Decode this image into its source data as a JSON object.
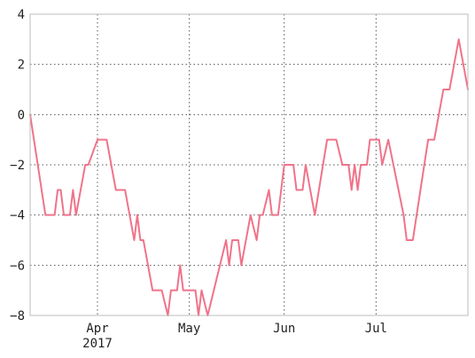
{
  "chart_data": {
    "type": "line",
    "title": "",
    "xlabel": "",
    "ylabel": "",
    "grid": true,
    "line_color": "#f0738a",
    "x_axis": {
      "type": "date",
      "range": [
        "2017-03-10",
        "2017-07-31"
      ],
      "ticks": [
        {
          "date": "2017-04-01",
          "label": "Apr",
          "sublabel": "2017"
        },
        {
          "date": "2017-05-01",
          "label": "May",
          "sublabel": ""
        },
        {
          "date": "2017-06-01",
          "label": "Jun",
          "sublabel": ""
        },
        {
          "date": "2017-07-01",
          "label": "Jul",
          "sublabel": ""
        }
      ]
    },
    "y_axis": {
      "range": [
        -8,
        4
      ],
      "ticks": [
        -8,
        -6,
        -4,
        -2,
        0,
        2,
        4
      ],
      "tick_labels": [
        "−8",
        "−6",
        "−4",
        "−2",
        "0",
        "2",
        "4"
      ]
    },
    "series": [
      {
        "points": [
          [
            "2017-03-10",
            0
          ],
          [
            "2017-03-15",
            -4
          ],
          [
            "2017-03-18",
            -4
          ],
          [
            "2017-03-19",
            -3
          ],
          [
            "2017-03-20",
            -3
          ],
          [
            "2017-03-21",
            -4
          ],
          [
            "2017-03-23",
            -4
          ],
          [
            "2017-03-24",
            -3
          ],
          [
            "2017-03-25",
            -4
          ],
          [
            "2017-03-28",
            -2
          ],
          [
            "2017-03-29",
            -2
          ],
          [
            "2017-04-01",
            -1
          ],
          [
            "2017-04-04",
            -1
          ],
          [
            "2017-04-07",
            -3
          ],
          [
            "2017-04-10",
            -3
          ],
          [
            "2017-04-13",
            -5
          ],
          [
            "2017-04-14",
            -4
          ],
          [
            "2017-04-15",
            -5
          ],
          [
            "2017-04-16",
            -5
          ],
          [
            "2017-04-19",
            -7
          ],
          [
            "2017-04-22",
            -7
          ],
          [
            "2017-04-24",
            -8
          ],
          [
            "2017-04-25",
            -7
          ],
          [
            "2017-04-27",
            -7
          ],
          [
            "2017-04-28",
            -6
          ],
          [
            "2017-04-29",
            -7
          ],
          [
            "2017-05-03",
            -7
          ],
          [
            "2017-05-04",
            -8
          ],
          [
            "2017-05-05",
            -7
          ],
          [
            "2017-05-07",
            -8
          ],
          [
            "2017-05-13",
            -5
          ],
          [
            "2017-05-14",
            -6
          ],
          [
            "2017-05-15",
            -5
          ],
          [
            "2017-05-17",
            -5
          ],
          [
            "2017-05-18",
            -6
          ],
          [
            "2017-05-21",
            -4
          ],
          [
            "2017-05-23",
            -5
          ],
          [
            "2017-05-24",
            -4
          ],
          [
            "2017-05-25",
            -4
          ],
          [
            "2017-05-27",
            -3
          ],
          [
            "2017-05-28",
            -4
          ],
          [
            "2017-05-30",
            -4
          ],
          [
            "2017-06-01",
            -2
          ],
          [
            "2017-06-04",
            -2
          ],
          [
            "2017-06-05",
            -3
          ],
          [
            "2017-06-07",
            -3
          ],
          [
            "2017-06-08",
            -2
          ],
          [
            "2017-06-11",
            -4
          ],
          [
            "2017-06-15",
            -1
          ],
          [
            "2017-06-18",
            -1
          ],
          [
            "2017-06-20",
            -2
          ],
          [
            "2017-06-22",
            -2
          ],
          [
            "2017-06-23",
            -3
          ],
          [
            "2017-06-24",
            -2
          ],
          [
            "2017-06-25",
            -3
          ],
          [
            "2017-06-26",
            -2
          ],
          [
            "2017-06-28",
            -2
          ],
          [
            "2017-06-29",
            -1
          ],
          [
            "2017-07-02",
            -1
          ],
          [
            "2017-07-03",
            -2
          ],
          [
            "2017-07-05",
            -1
          ],
          [
            "2017-07-10",
            -4
          ],
          [
            "2017-07-11",
            -5
          ],
          [
            "2017-07-13",
            -5
          ],
          [
            "2017-07-18",
            -1
          ],
          [
            "2017-07-20",
            -1
          ],
          [
            "2017-07-23",
            1
          ],
          [
            "2017-07-25",
            1
          ],
          [
            "2017-07-28",
            3
          ],
          [
            "2017-07-31",
            1
          ]
        ]
      }
    ]
  }
}
